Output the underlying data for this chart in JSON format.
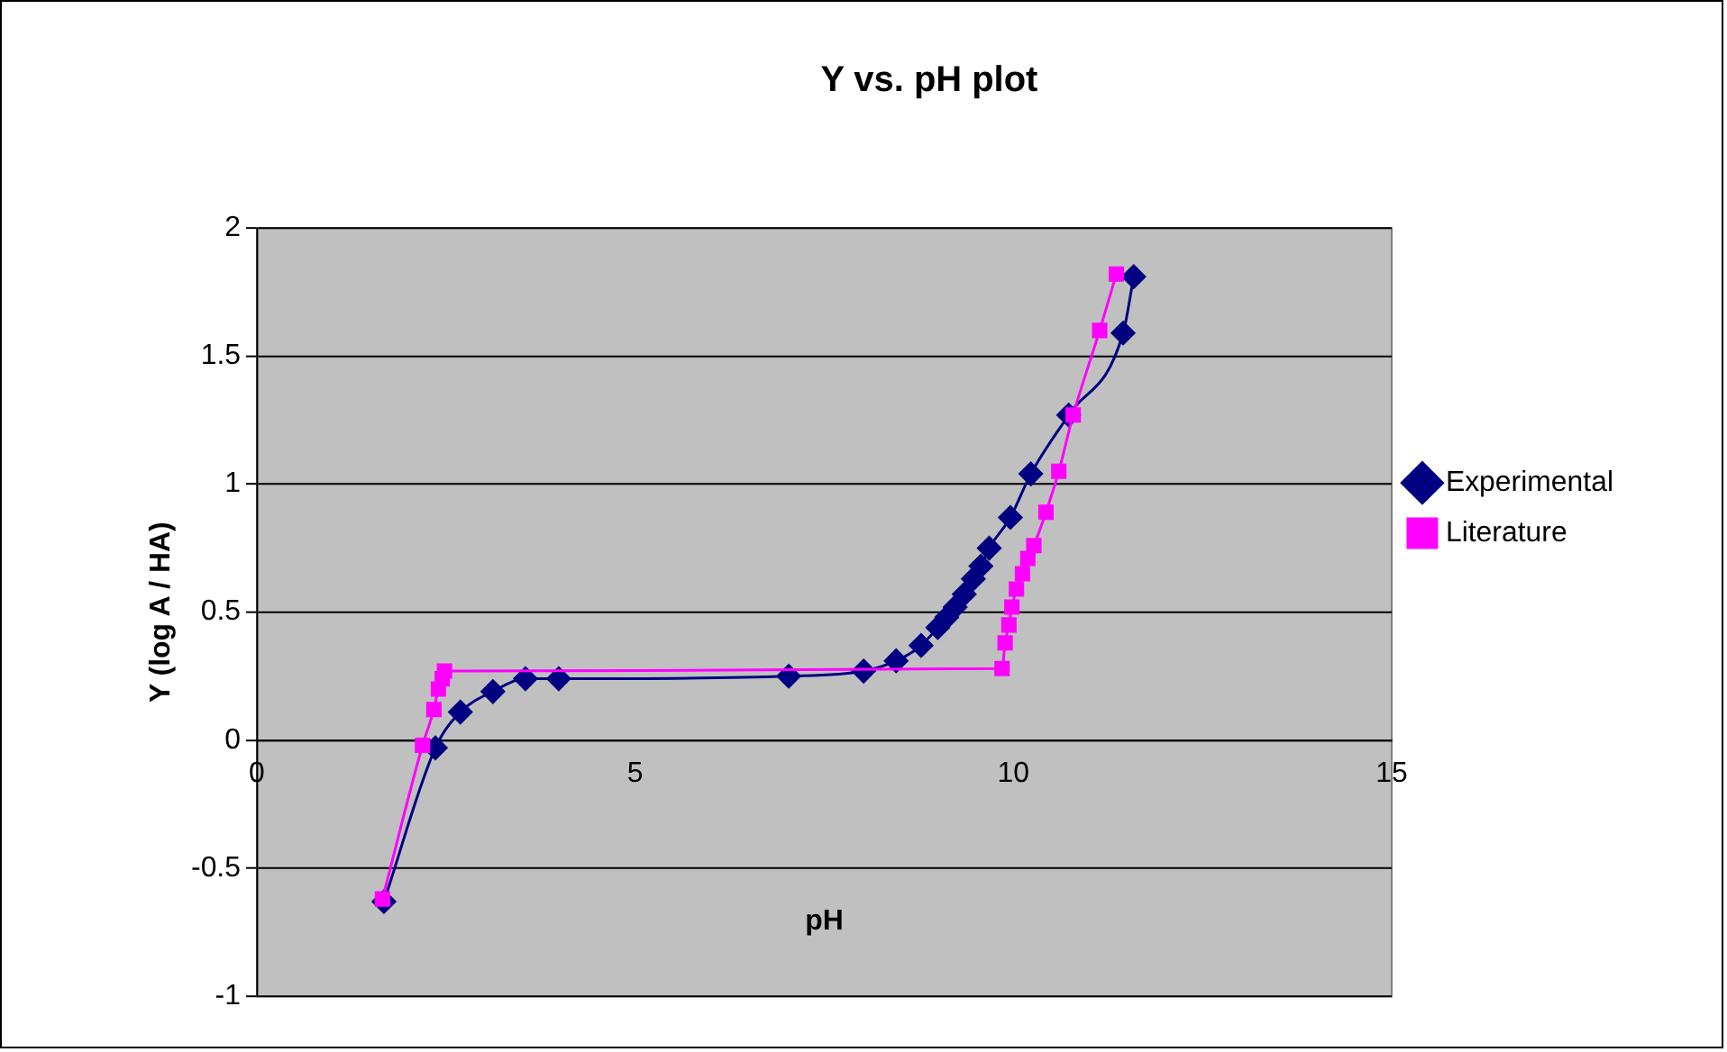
{
  "chart_data": {
    "type": "line",
    "title": "Y vs. pH plot",
    "xlabel": "pH",
    "ylabel": "Y (log A / HA)",
    "xlim": [
      0,
      15
    ],
    "xticks": [
      0,
      5,
      10,
      15
    ],
    "ylim": [
      -1,
      2
    ],
    "yticks": [
      -1,
      -0.5,
      0,
      0.5,
      1,
      1.5,
      2
    ],
    "grid": "y",
    "legend": "right",
    "line_style": "solid",
    "series": [
      {
        "name": "Experimental",
        "color": "#000080",
        "marker": "diamond",
        "x": [
          1.68,
          2.36,
          2.69,
          3.12,
          3.55,
          3.99,
          7.03,
          8.02,
          8.45,
          8.78,
          9.0,
          9.12,
          9.23,
          9.35,
          9.47,
          9.57,
          9.68,
          9.96,
          10.23,
          10.73,
          11.45,
          11.59
        ],
        "values": [
          -0.63,
          -0.03,
          0.11,
          0.19,
          0.24,
          0.24,
          0.25,
          0.27,
          0.31,
          0.37,
          0.44,
          0.48,
          0.52,
          0.57,
          0.63,
          0.68,
          0.75,
          0.87,
          1.04,
          1.27,
          1.59,
          1.81
        ]
      },
      {
        "name": "Literature",
        "color": "#ff00ff",
        "marker": "square",
        "x": [
          1.66,
          2.19,
          2.34,
          2.4,
          2.45,
          2.48,
          9.85,
          9.89,
          9.94,
          9.98,
          10.04,
          10.12,
          10.19,
          10.27,
          10.43,
          10.6,
          10.79,
          11.14,
          11.36
        ],
        "values": [
          -0.62,
          -0.02,
          0.12,
          0.2,
          0.24,
          0.27,
          0.28,
          0.38,
          0.45,
          0.52,
          0.59,
          0.65,
          0.71,
          0.76,
          0.89,
          1.05,
          1.27,
          1.6,
          1.82
        ]
      }
    ]
  }
}
